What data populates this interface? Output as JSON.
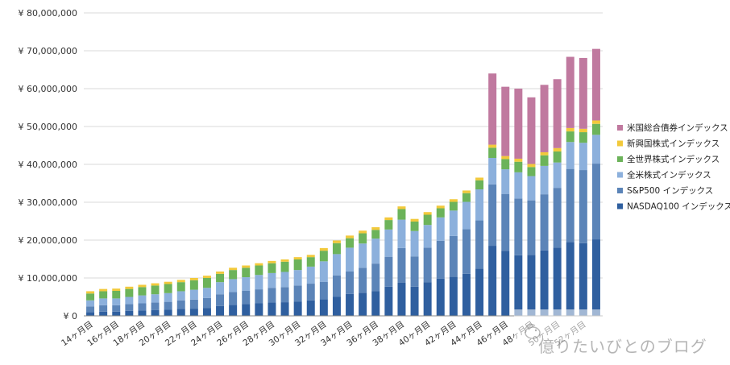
{
  "chart_data": {
    "type": "bar",
    "stacked": true,
    "y_axis": {
      "min": 0,
      "max": 80000000,
      "step": 10000000,
      "prefix": "¥ ",
      "tick_labels": [
        "¥ 0",
        "¥ 10,000,000",
        "¥ 20,000,000",
        "¥ 30,000,000",
        "¥ 40,000,000",
        "¥ 50,000,000",
        "¥ 60,000,000",
        "¥ 70,000,000",
        "¥ 80,000,000"
      ]
    },
    "grid": true,
    "legend_position": "right",
    "categories": [
      "14ヶ月目",
      "15ヶ月目",
      "16ヶ月目",
      "17ヶ月目",
      "18ヶ月目",
      "19ヶ月目",
      "20ヶ月目",
      "21ヶ月目",
      "22ヶ月目",
      "23ヶ月目",
      "24ヶ月目",
      "25ヶ月目",
      "26ヶ月目",
      "27ヶ月目",
      "28ヶ月目",
      "29ヶ月目",
      "30ヶ月目",
      "31ヶ月目",
      "32ヶ月目",
      "33ヶ月目",
      "34ヶ月目",
      "35ヶ月目",
      "36ヶ月目",
      "37ヶ月目",
      "38ヶ月目",
      "39ヶ月目",
      "40ヶ月目",
      "41ヶ月目",
      "42ヶ月目",
      "43ヶ月目",
      "44ヶ月目",
      "45ヶ月目",
      "46ヶ月目",
      "47ヶ月目",
      "48ヶ月目",
      "49ヶ月目",
      "50ヶ月目",
      "51ヶ月目",
      "52ヶ月目",
      "53ヶ月目"
    ],
    "visible_tick_labels": [
      "14ヶ月目",
      "16ヶ月目",
      "18ヶ月目",
      "20ヶ月目",
      "22ヶ月目",
      "24ヶ月目",
      "26ヶ月目",
      "28ヶ月目",
      "30ヶ月目",
      "32ヶ月目",
      "34ヶ月目",
      "36ヶ月目",
      "38ヶ月目",
      "40ヶ月目",
      "42ヶ月目",
      "44ヶ月目",
      "46ヶ月目",
      "48ヶ月目",
      "50ヶ月目",
      "52ヶ月目"
    ],
    "series": [
      {
        "name": "NASDAQ100 インデックス",
        "color": "#2f5f9f",
        "values": [
          1000000,
          1100000,
          1100000,
          1300000,
          1400000,
          1500000,
          1600000,
          1800000,
          1900000,
          2100000,
          2600000,
          2900000,
          3100000,
          3300000,
          3500000,
          3600000,
          3800000,
          4100000,
          4400000,
          5000000,
          5800000,
          6100000,
          6500000,
          7700000,
          8800000,
          7700000,
          8900000,
          9800000,
          10300000,
          11100000,
          12500000,
          18500000,
          17200000,
          16000000,
          16100000,
          17300000,
          18000000,
          19500000,
          19200000,
          20200000
        ]
      },
      {
        "name": "S&P500 インデックス",
        "color": "#5b84b8",
        "values": [
          1500000,
          1700000,
          1700000,
          1800000,
          1900000,
          2000000,
          2100000,
          2300000,
          2400000,
          2600000,
          3100000,
          3400000,
          3500000,
          3700000,
          3900000,
          4000000,
          4200000,
          4400000,
          4600000,
          5700000,
          5900000,
          6600000,
          7300000,
          7900000,
          9100000,
          8000000,
          9100000,
          10000000,
          10800000,
          11800000,
          12700000,
          16200000,
          15000000,
          15000000,
          14400000,
          14800000,
          15800000,
          19300000,
          19300000,
          20000000
        ]
      },
      {
        "name": "全米株式インデックス",
        "color": "#8cb0dc",
        "values": [
          1600000,
          1800000,
          1800000,
          1900000,
          2100000,
          2200000,
          2300000,
          2400000,
          2600000,
          2700000,
          3200000,
          3400000,
          3600000,
          3800000,
          3900000,
          4000000,
          4100000,
          4500000,
          5400000,
          5600000,
          6300000,
          6400000,
          6600000,
          7200000,
          7500000,
          6700000,
          6000000,
          6200000,
          6700000,
          7200000,
          8200000,
          7000000,
          6500000,
          6900000,
          6400000,
          7500000,
          6700000,
          7100000,
          7200000,
          7600000
        ]
      },
      {
        "name": "全世界株式インデックス",
        "color": "#6cb35a",
        "values": [
          1800000,
          1900000,
          2000000,
          2100000,
          2200000,
          2300000,
          2400000,
          2400000,
          2500000,
          2600000,
          2200000,
          2400000,
          2500000,
          2500000,
          2600000,
          2700000,
          2800000,
          2500000,
          2800000,
          2900000,
          2500000,
          2700000,
          2300000,
          2500000,
          2800000,
          2500000,
          2700000,
          2400000,
          2300000,
          2300000,
          2400000,
          2700000,
          2700000,
          2800000,
          2400000,
          2800000,
          2900000,
          2800000,
          2800000,
          2900000
        ]
      },
      {
        "name": "新興国株式インデックス",
        "color": "#f2c93b",
        "values": [
          600000,
          600000,
          600000,
          600000,
          600000,
          600000,
          600000,
          600000,
          600000,
          600000,
          600000,
          600000,
          600000,
          600000,
          600000,
          600000,
          600000,
          600000,
          700000,
          700000,
          700000,
          700000,
          700000,
          700000,
          700000,
          700000,
          700000,
          700000,
          700000,
          700000,
          700000,
          800000,
          800000,
          800000,
          800000,
          800000,
          900000,
          900000,
          900000,
          900000
        ]
      },
      {
        "name": "米国総合債券インデックス",
        "color": "#c0799f",
        "values": [
          0,
          0,
          0,
          0,
          0,
          0,
          0,
          0,
          0,
          0,
          0,
          0,
          0,
          0,
          0,
          0,
          0,
          0,
          0,
          0,
          0,
          0,
          0,
          0,
          0,
          0,
          0,
          0,
          0,
          0,
          0,
          18800000,
          18300000,
          18500000,
          17600000,
          17800000,
          18200000,
          18800000,
          18700000,
          18900000
        ]
      }
    ]
  },
  "watermark": {
    "text": "億りたいびとのブログ",
    "logo": "bird-logo-icon"
  }
}
